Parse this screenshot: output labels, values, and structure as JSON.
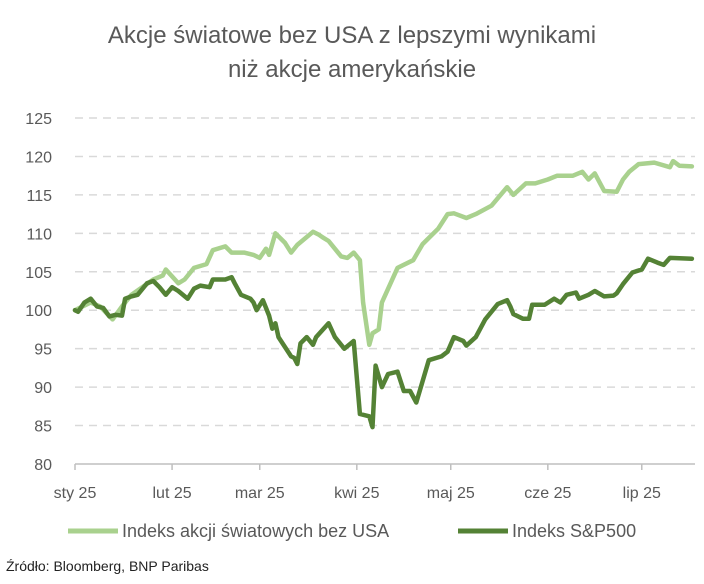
{
  "chart_data": {
    "type": "line",
    "title": [
      "Akcje światowe bez USA z lepszymi wynikami",
      "niż akcje amerykańskie"
    ],
    "xlabel": "",
    "ylabel": "",
    "ylim": [
      80,
      125
    ],
    "yticks": [
      80,
      85,
      90,
      95,
      100,
      105,
      110,
      115,
      120,
      125
    ],
    "xlim": [
      "2025-01-01",
      "2025-07-18"
    ],
    "xticks": [
      {
        "date": "2025-01-01",
        "label": "sty 25"
      },
      {
        "date": "2025-02-01",
        "label": "lut 25"
      },
      {
        "date": "2025-03-01",
        "label": "mar 25"
      },
      {
        "date": "2025-04-01",
        "label": "kwi 25"
      },
      {
        "date": "2025-05-01",
        "label": "maj 25"
      },
      {
        "date": "2025-06-01",
        "label": "cze 25"
      },
      {
        "date": "2025-07-01",
        "label": "lip 25"
      }
    ],
    "grid": "horizontal dashed",
    "legend": "bottom",
    "series": [
      {
        "name": "Indeks akcji światowych bez USA",
        "color": "#a9d18e",
        "points": [
          [
            "2025-01-01",
            100
          ],
          [
            "2025-01-06",
            101
          ],
          [
            "2025-01-09",
            100.5
          ],
          [
            "2025-01-13",
            98.8
          ],
          [
            "2025-01-16",
            100.5
          ],
          [
            "2025-01-19",
            102
          ],
          [
            "2025-01-26",
            104
          ],
          [
            "2025-01-29",
            104.5
          ],
          [
            "2025-01-30",
            105.3
          ],
          [
            "2025-02-03",
            103.5
          ],
          [
            "2025-02-05",
            104
          ],
          [
            "2025-02-08",
            105.5
          ],
          [
            "2025-02-12",
            106
          ],
          [
            "2025-02-14",
            107.8
          ],
          [
            "2025-02-18",
            108.3
          ],
          [
            "2025-02-20",
            107.5
          ],
          [
            "2025-02-24",
            107.5
          ],
          [
            "2025-02-27",
            107.2
          ],
          [
            "2025-03-01",
            106.8
          ],
          [
            "2025-03-03",
            108
          ],
          [
            "2025-03-04",
            107.2
          ],
          [
            "2025-03-06",
            110
          ],
          [
            "2025-03-09",
            108.8
          ],
          [
            "2025-03-11",
            107.5
          ],
          [
            "2025-03-13",
            108.5
          ],
          [
            "2025-03-18",
            110.2
          ],
          [
            "2025-03-20",
            109.8
          ],
          [
            "2025-03-21",
            109.5
          ],
          [
            "2025-03-23",
            109
          ],
          [
            "2025-03-26",
            107.5
          ],
          [
            "2025-03-27",
            107
          ],
          [
            "2025-03-29",
            106.8
          ],
          [
            "2025-03-31",
            107.5
          ],
          [
            "2025-04-02",
            106.5
          ],
          [
            "2025-04-03",
            101
          ],
          [
            "2025-04-05",
            95.5
          ],
          [
            "2025-04-06",
            97
          ],
          [
            "2025-04-08",
            97.5
          ],
          [
            "2025-04-09",
            101
          ],
          [
            "2025-04-14",
            105.5
          ],
          [
            "2025-04-19",
            106.5
          ],
          [
            "2025-04-22",
            108.6
          ],
          [
            "2025-04-27",
            110.6
          ],
          [
            "2025-04-30",
            112.5
          ],
          [
            "2025-05-02",
            112.6
          ],
          [
            "2025-05-06",
            112
          ],
          [
            "2025-05-09",
            112.5
          ],
          [
            "2025-05-14",
            113.6
          ],
          [
            "2025-05-19",
            116
          ],
          [
            "2025-05-21",
            115
          ],
          [
            "2025-05-25",
            116.5
          ],
          [
            "2025-05-28",
            116.5
          ],
          [
            "2025-06-01",
            117
          ],
          [
            "2025-06-04",
            117.5
          ],
          [
            "2025-06-09",
            117.5
          ],
          [
            "2025-06-12",
            118
          ],
          [
            "2025-06-14",
            117
          ],
          [
            "2025-06-16",
            117.8
          ],
          [
            "2025-06-19",
            115.5
          ],
          [
            "2025-06-23",
            115.4
          ],
          [
            "2025-06-25",
            117
          ],
          [
            "2025-06-27",
            118
          ],
          [
            "2025-06-30",
            119
          ],
          [
            "2025-07-05",
            119.2
          ],
          [
            "2025-07-10",
            118.6
          ],
          [
            "2025-07-11",
            119.4
          ],
          [
            "2025-07-13",
            118.8
          ],
          [
            "2025-07-17",
            118.7
          ]
        ]
      },
      {
        "name": "Indeks S&P500",
        "color": "#548235",
        "points": [
          [
            "2025-01-01",
            100
          ],
          [
            "2025-01-02",
            99.8
          ],
          [
            "2025-01-04",
            101
          ],
          [
            "2025-01-06",
            101.5
          ],
          [
            "2025-01-08",
            100.5
          ],
          [
            "2025-01-10",
            100.3
          ],
          [
            "2025-01-12",
            99.2
          ],
          [
            "2025-01-14",
            99.4
          ],
          [
            "2025-01-16",
            99.3
          ],
          [
            "2025-01-17",
            101.5
          ],
          [
            "2025-01-19",
            101.8
          ],
          [
            "2025-01-21",
            102
          ],
          [
            "2025-01-24",
            103.5
          ],
          [
            "2025-01-26",
            103.8
          ],
          [
            "2025-01-28",
            103
          ],
          [
            "2025-01-30",
            102
          ],
          [
            "2025-02-01",
            103
          ],
          [
            "2025-02-03",
            102.5
          ],
          [
            "2025-02-06",
            101.5
          ],
          [
            "2025-02-08",
            102.8
          ],
          [
            "2025-02-10",
            103.2
          ],
          [
            "2025-02-13",
            103
          ],
          [
            "2025-02-14",
            104
          ],
          [
            "2025-02-18",
            104
          ],
          [
            "2025-02-20",
            104.3
          ],
          [
            "2025-02-21",
            103.5
          ],
          [
            "2025-02-23",
            102
          ],
          [
            "2025-02-26",
            101.5
          ],
          [
            "2025-02-27",
            101
          ],
          [
            "2025-02-28",
            100
          ],
          [
            "2025-03-02",
            101.3
          ],
          [
            "2025-03-04",
            99.3
          ],
          [
            "2025-03-05",
            97.6
          ],
          [
            "2025-03-06",
            98.3
          ],
          [
            "2025-03-07",
            96.5
          ],
          [
            "2025-03-11",
            94
          ],
          [
            "2025-03-12",
            93.8
          ],
          [
            "2025-03-13",
            93
          ],
          [
            "2025-03-14",
            95.7
          ],
          [
            "2025-03-16",
            96.5
          ],
          [
            "2025-03-18",
            95.5
          ],
          [
            "2025-03-19",
            96.5
          ],
          [
            "2025-03-23",
            98.3
          ],
          [
            "2025-03-25",
            96.5
          ],
          [
            "2025-03-28",
            95
          ],
          [
            "2025-03-31",
            96
          ],
          [
            "2025-04-02",
            86.5
          ],
          [
            "2025-04-05",
            86.2
          ],
          [
            "2025-04-06",
            84.8
          ],
          [
            "2025-04-07",
            92.8
          ],
          [
            "2025-04-09",
            90
          ],
          [
            "2025-04-11",
            91.7
          ],
          [
            "2025-04-14",
            92
          ],
          [
            "2025-04-16",
            89.5
          ],
          [
            "2025-04-18",
            89.5
          ],
          [
            "2025-04-20",
            88
          ],
          [
            "2025-04-24",
            93.5
          ],
          [
            "2025-04-28",
            94
          ],
          [
            "2025-04-30",
            94.6
          ],
          [
            "2025-05-02",
            96.5
          ],
          [
            "2025-05-05",
            96
          ],
          [
            "2025-05-06",
            95.4
          ],
          [
            "2025-05-09",
            96.5
          ],
          [
            "2025-05-12",
            98.8
          ],
          [
            "2025-05-16",
            100.8
          ],
          [
            "2025-05-19",
            101.3
          ],
          [
            "2025-05-20",
            100.5
          ],
          [
            "2025-05-21",
            99.5
          ],
          [
            "2025-05-24",
            98.9
          ],
          [
            "2025-05-26",
            98.9
          ],
          [
            "2025-05-27",
            100.7
          ],
          [
            "2025-05-31",
            100.7
          ],
          [
            "2025-06-03",
            101.5
          ],
          [
            "2025-06-05",
            101
          ],
          [
            "2025-06-07",
            102
          ],
          [
            "2025-06-10",
            102.3
          ],
          [
            "2025-06-11",
            101.5
          ],
          [
            "2025-06-14",
            102
          ],
          [
            "2025-06-16",
            102.5
          ],
          [
            "2025-06-19",
            101.8
          ],
          [
            "2025-06-22",
            101.9
          ],
          [
            "2025-06-23",
            102.2
          ],
          [
            "2025-06-25",
            103.4
          ],
          [
            "2025-06-28",
            104.9
          ],
          [
            "2025-07-01",
            105.3
          ],
          [
            "2025-07-03",
            106.7
          ],
          [
            "2025-07-06",
            106.2
          ],
          [
            "2025-07-08",
            105.9
          ],
          [
            "2025-07-10",
            106.8
          ],
          [
            "2025-07-17",
            106.7
          ]
        ]
      }
    ]
  },
  "source": "Źródło: Bloomberg, BNP Paribas"
}
